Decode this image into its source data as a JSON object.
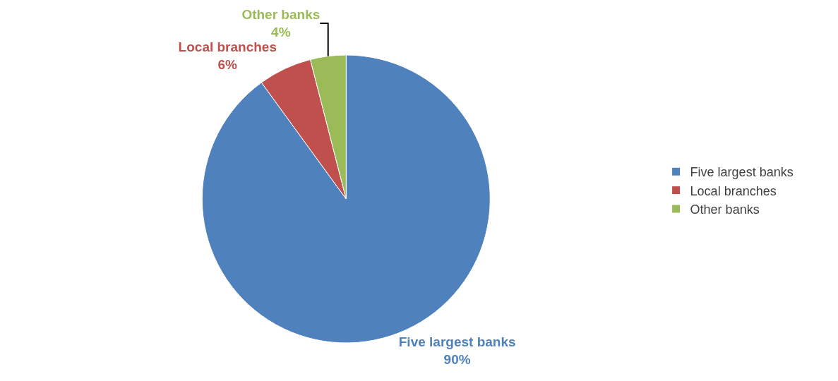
{
  "chart_data": {
    "type": "pie",
    "categories": [
      "Five largest banks",
      "Local branches",
      "Other banks"
    ],
    "values": [
      90,
      6,
      4
    ],
    "colors": [
      "#4f81bd",
      "#c0504d",
      "#9bbb59"
    ],
    "value_labels": [
      "90%",
      "6%",
      "4%"
    ],
    "legend": "right"
  }
}
